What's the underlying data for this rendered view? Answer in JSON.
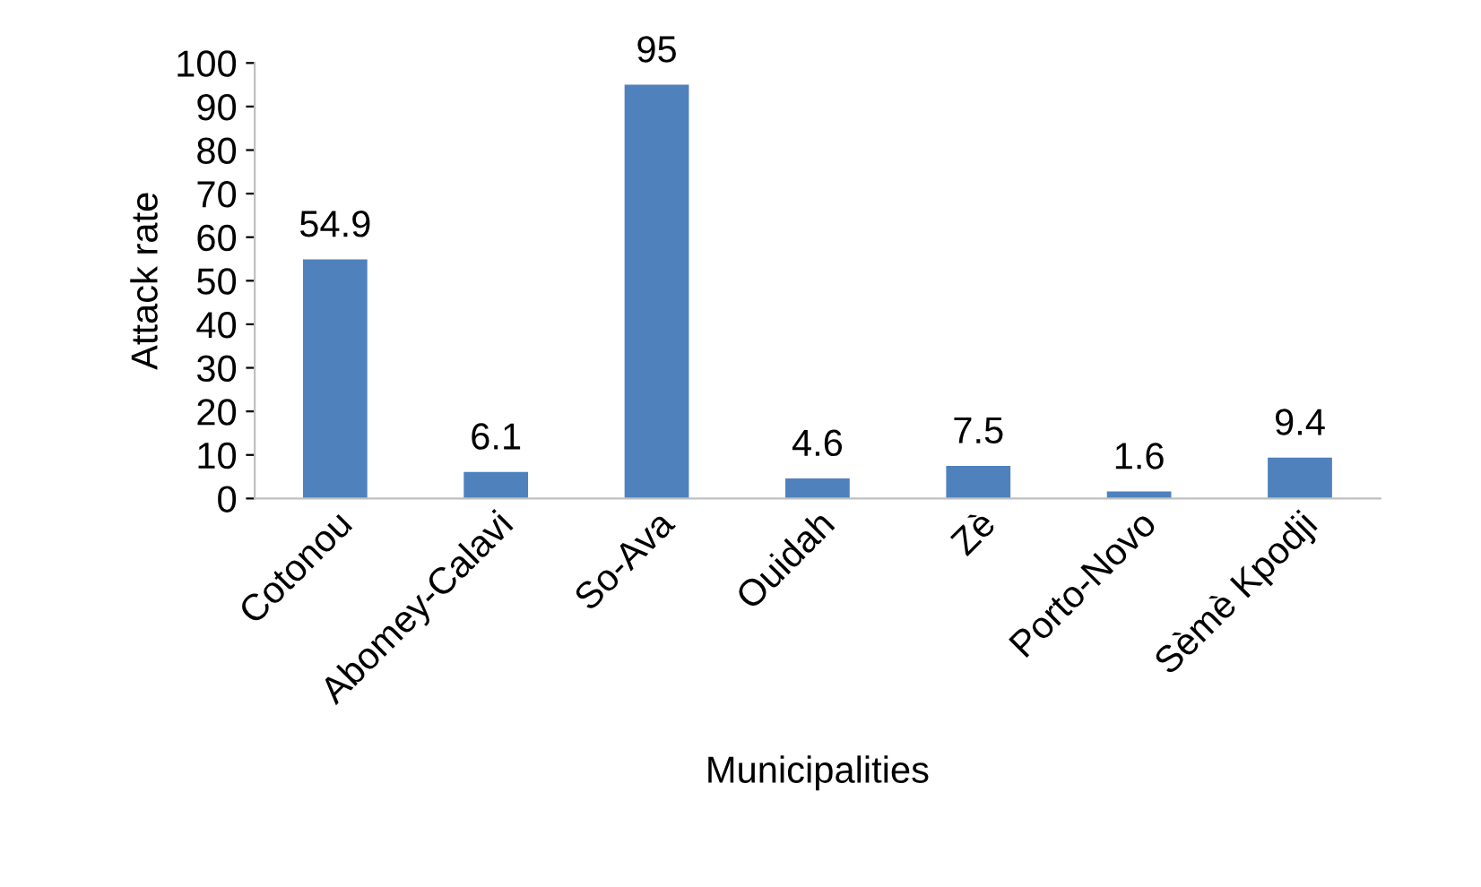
{
  "chart_data": {
    "type": "bar",
    "xlabel": "Municipalities",
    "ylabel": "Attack rate",
    "categories": [
      "Cotonou",
      "Abomey-Calavi",
      "So-Ava",
      "Ouidah",
      "Zè",
      "Porto-Novo",
      "Sèmè Kpodji"
    ],
    "values": [
      54.9,
      6.1,
      95,
      4.6,
      7.5,
      1.6,
      9.4
    ],
    "color": "#4f81bd",
    "ylim": [
      0,
      100
    ],
    "yticks": [
      0,
      10,
      20,
      30,
      40,
      50,
      60,
      70,
      80,
      90,
      100
    ],
    "data_labels": true,
    "grid": false
  }
}
